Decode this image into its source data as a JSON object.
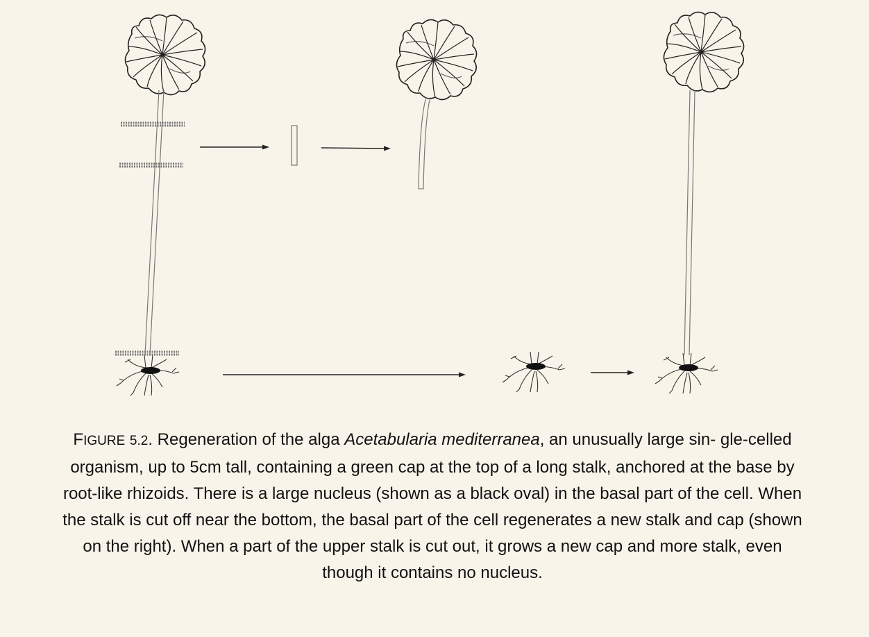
{
  "caption": {
    "label_first": "F",
    "label_rest": "IGURE",
    "number": "5.2",
    "text_before_species": ". Regeneration of the alga ",
    "species": "Acetabularia mediterranea",
    "text_after_species": ", an unusually large sin- gle-celled organism, up to 5cm tall, containing a green cap at the top of a long stalk, anchored at the base by root-like rhizoids. There is a large nucleus (shown as a black oval) in the basal part of the cell. When the stalk is cut off near the bottom, the basal part of the cell regenerates a new stalk and cap (shown on the right). When a part of the upper stalk is cut out, it grows a new cap and more stalk, even though it contains no nucleus."
  },
  "colors": {
    "background": "#f8f4ea",
    "ink": "#111111",
    "stalk": "#777777"
  }
}
